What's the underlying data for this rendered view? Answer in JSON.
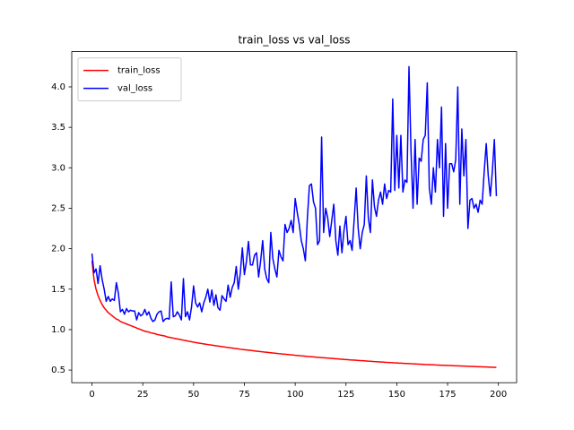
{
  "chart_data": {
    "type": "line",
    "title": "train_loss vs val_loss",
    "x": [
      0,
      1,
      2,
      3,
      4,
      5,
      6,
      7,
      8,
      9,
      10,
      11,
      12,
      13,
      14,
      15,
      16,
      17,
      18,
      19,
      20,
      21,
      22,
      23,
      24,
      25,
      26,
      27,
      28,
      29,
      30,
      31,
      32,
      33,
      34,
      35,
      36,
      37,
      38,
      39,
      40,
      41,
      42,
      43,
      44,
      45,
      46,
      47,
      48,
      49,
      50,
      51,
      52,
      53,
      54,
      55,
      56,
      57,
      58,
      59,
      60,
      61,
      62,
      63,
      64,
      65,
      66,
      67,
      68,
      69,
      70,
      71,
      72,
      73,
      74,
      75,
      76,
      77,
      78,
      79,
      80,
      81,
      82,
      83,
      84,
      85,
      86,
      87,
      88,
      89,
      90,
      91,
      92,
      93,
      94,
      95,
      96,
      97,
      98,
      99,
      100,
      101,
      102,
      103,
      104,
      105,
      106,
      107,
      108,
      109,
      110,
      111,
      112,
      113,
      114,
      115,
      116,
      117,
      118,
      119,
      120,
      121,
      122,
      123,
      124,
      125,
      126,
      127,
      128,
      129,
      130,
      131,
      132,
      133,
      134,
      135,
      136,
      137,
      138,
      139,
      140,
      141,
      142,
      143,
      144,
      145,
      146,
      147,
      148,
      149,
      150,
      151,
      152,
      153,
      154,
      155,
      156,
      157,
      158,
      159,
      160,
      161,
      162,
      163,
      164,
      165,
      166,
      167,
      168,
      169,
      170,
      171,
      172,
      173,
      174,
      175,
      176,
      177,
      178,
      179,
      180,
      181,
      182,
      183,
      184,
      185,
      186,
      187,
      188,
      189,
      190,
      191,
      192,
      193,
      194,
      195,
      196,
      197,
      198,
      199
    ],
    "series": [
      {
        "name": "train_loss",
        "color": "#ff0000",
        "values": [
          1.85,
          1.62,
          1.5,
          1.42,
          1.36,
          1.31,
          1.27,
          1.24,
          1.21,
          1.19,
          1.17,
          1.15,
          1.13,
          1.12,
          1.1,
          1.09,
          1.08,
          1.07,
          1.06,
          1.05,
          1.04,
          1.03,
          1.02,
          1.01,
          1.0,
          0.99,
          0.98,
          0.975,
          0.97,
          0.96,
          0.955,
          0.95,
          0.94,
          0.935,
          0.93,
          0.925,
          0.92,
          0.91,
          0.905,
          0.9,
          0.895,
          0.89,
          0.885,
          0.88,
          0.875,
          0.87,
          0.865,
          0.86,
          0.855,
          0.85,
          0.845,
          0.84,
          0.836,
          0.832,
          0.828,
          0.824,
          0.82,
          0.816,
          0.812,
          0.808,
          0.804,
          0.8,
          0.797,
          0.793,
          0.789,
          0.786,
          0.782,
          0.779,
          0.775,
          0.772,
          0.768,
          0.765,
          0.762,
          0.758,
          0.755,
          0.752,
          0.749,
          0.746,
          0.743,
          0.74,
          0.737,
          0.734,
          0.731,
          0.728,
          0.725,
          0.722,
          0.72,
          0.717,
          0.714,
          0.711,
          0.709,
          0.706,
          0.703,
          0.701,
          0.698,
          0.696,
          0.693,
          0.691,
          0.688,
          0.686,
          0.683,
          0.681,
          0.679,
          0.676,
          0.674,
          0.672,
          0.669,
          0.667,
          0.665,
          0.663,
          0.661,
          0.658,
          0.656,
          0.654,
          0.652,
          0.65,
          0.648,
          0.646,
          0.644,
          0.642,
          0.64,
          0.638,
          0.636,
          0.634,
          0.632,
          0.63,
          0.628,
          0.626,
          0.625,
          0.623,
          0.621,
          0.619,
          0.617,
          0.616,
          0.614,
          0.612,
          0.61,
          0.609,
          0.607,
          0.605,
          0.604,
          0.602,
          0.6,
          0.599,
          0.597,
          0.595,
          0.594,
          0.592,
          0.591,
          0.589,
          0.588,
          0.586,
          0.585,
          0.584,
          0.582,
          0.581,
          0.58,
          0.578,
          0.577,
          0.576,
          0.574,
          0.573,
          0.572,
          0.571,
          0.569,
          0.568,
          0.567,
          0.566,
          0.565,
          0.563,
          0.562,
          0.561,
          0.56,
          0.559,
          0.558,
          0.557,
          0.556,
          0.555,
          0.554,
          0.553,
          0.552,
          0.551,
          0.55,
          0.549,
          0.548,
          0.547,
          0.546,
          0.545,
          0.544,
          0.543,
          0.542,
          0.541,
          0.54,
          0.539,
          0.538,
          0.537,
          0.536,
          0.535,
          0.534,
          0.533
        ]
      },
      {
        "name": "val_loss",
        "color": "#0000ff",
        "values": [
          1.94,
          1.7,
          1.75,
          1.57,
          1.79,
          1.62,
          1.5,
          1.35,
          1.41,
          1.35,
          1.38,
          1.36,
          1.58,
          1.45,
          1.22,
          1.25,
          1.19,
          1.26,
          1.22,
          1.24,
          1.23,
          1.23,
          1.12,
          1.21,
          1.17,
          1.19,
          1.25,
          1.18,
          1.22,
          1.14,
          1.1,
          1.12,
          1.19,
          1.22,
          1.23,
          1.1,
          1.13,
          1.14,
          1.13,
          1.59,
          1.16,
          1.17,
          1.22,
          1.18,
          1.12,
          1.63,
          1.16,
          1.22,
          1.12,
          1.28,
          1.54,
          1.33,
          1.28,
          1.33,
          1.22,
          1.33,
          1.4,
          1.5,
          1.34,
          1.49,
          1.3,
          1.43,
          1.27,
          1.24,
          1.42,
          1.38,
          1.35,
          1.55,
          1.4,
          1.52,
          1.58,
          1.78,
          1.5,
          1.7,
          2.01,
          1.68,
          1.84,
          2.09,
          1.8,
          1.8,
          1.92,
          1.95,
          1.65,
          1.85,
          2.1,
          1.75,
          1.63,
          1.58,
          2.2,
          1.88,
          1.75,
          1.65,
          1.98,
          1.9,
          1.85,
          2.3,
          2.2,
          2.25,
          2.35,
          2.2,
          2.62,
          2.45,
          2.3,
          2.1,
          2.0,
          1.85,
          2.38,
          2.78,
          2.8,
          2.58,
          2.5,
          2.05,
          2.1,
          3.38,
          2.2,
          2.5,
          2.38,
          2.15,
          2.35,
          2.55,
          2.1,
          1.92,
          2.28,
          1.95,
          2.22,
          2.4,
          2.05,
          2.1,
          1.98,
          2.35,
          2.75,
          2.25,
          2.0,
          2.2,
          2.3,
          2.9,
          2.38,
          2.2,
          2.85,
          2.52,
          2.4,
          2.6,
          2.7,
          2.55,
          2.8,
          2.62,
          2.72,
          2.7,
          3.85,
          2.72,
          3.4,
          2.75,
          3.4,
          2.7,
          2.85,
          2.82,
          4.25,
          3.2,
          2.5,
          3.35,
          2.55,
          3.12,
          3.08,
          3.35,
          3.4,
          4.05,
          2.75,
          2.55,
          3.0,
          2.7,
          3.35,
          3.0,
          3.75,
          2.4,
          3.3,
          2.5,
          3.05,
          3.05,
          2.95,
          3.1,
          4.0,
          2.55,
          3.48,
          2.9,
          3.35,
          2.25,
          2.6,
          2.62,
          2.5,
          2.55,
          2.45,
          2.6,
          2.55,
          2.95,
          3.3,
          2.9,
          2.65,
          2.95,
          3.35,
          2.65
        ]
      }
    ],
    "xlim": [
      -9.95,
      208.95
    ],
    "xticks": [
      0,
      25,
      50,
      75,
      100,
      125,
      150,
      175,
      200
    ],
    "ylim": [
      0.344,
      4.436
    ],
    "yticks": [
      0.5,
      {
        "value": 1.0,
        "label": "1.0"
      },
      1.5,
      {
        "value": 2.0,
        "label": "2.0"
      },
      2.5,
      {
        "value": 3.0,
        "label": "3.0"
      },
      3.5,
      {
        "value": 4.0,
        "label": "4.0"
      }
    ],
    "grid": false,
    "legend": "upper-left"
  }
}
